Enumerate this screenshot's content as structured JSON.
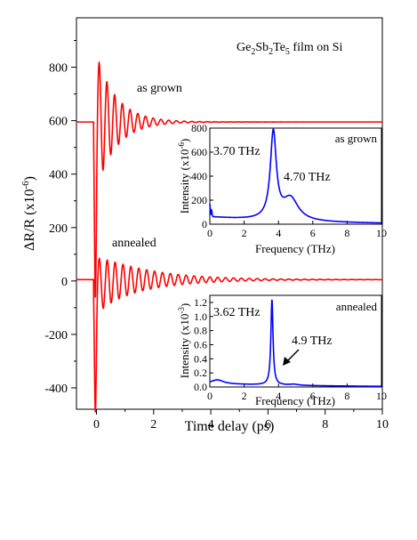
{
  "chart_data": [
    {
      "type": "line",
      "role": "main",
      "title": "",
      "annotation_parts": {
        "pre": "Ge",
        "sub1": "2",
        "mid": "Sb",
        "sub2": "2",
        "mid2": "Te",
        "sub3": "5",
        "post": " film on Si"
      },
      "xlabel": "Time delay (ps)",
      "ylabel_parts": {
        "base": "ΔR/R (x10",
        "sup": "-6",
        "close": ")"
      },
      "xlim": [
        -0.7,
        10
      ],
      "ylim": [
        -480,
        985
      ],
      "xticks": [
        0,
        2,
        4,
        6,
        8,
        10
      ],
      "yticks": [
        -400,
        -200,
        0,
        200,
        400,
        600,
        800
      ],
      "color": "#ff0000",
      "series": [
        {
          "label": "as grown",
          "baseline": 595,
          "onset_ps": -0.1,
          "dip": -430,
          "osc_amplitude": 290,
          "osc_frequency_thz": 3.7,
          "osc_decay_ps": 0.7,
          "osc_phase_deg": 99,
          "offset_amplitude": 5,
          "offset_decay_ps": 0.3
        },
        {
          "label": "annealed",
          "baseline": 5,
          "onset_ps": -0.1,
          "dip": -380,
          "osc_amplitude": 112,
          "osc_frequency_thz": 3.62,
          "osc_decay_ps": 1.7,
          "osc_phase_deg": 99,
          "offset_amplitude": -30,
          "offset_decay_ps": 0.5
        }
      ]
    },
    {
      "type": "line",
      "role": "inset",
      "panel_label": "as grown",
      "xlabel": "Frequency (THz)",
      "ylabel_parts": {
        "base": "Intensity (x10",
        "sup": "-6",
        "close": ")"
      },
      "xlim": [
        0,
        10
      ],
      "ylim": [
        0,
        800
      ],
      "xticks": [
        0,
        2,
        4,
        6,
        8,
        10
      ],
      "yticks": [
        0,
        200,
        400,
        600,
        800
      ],
      "color": "#0000ff",
      "peaks": [
        {
          "label": "3.70 THz",
          "center": 3.7,
          "height": 720,
          "width": 0.21
        },
        {
          "label": "4.70 THz",
          "center": 4.7,
          "height": 185,
          "width": 0.55
        }
      ],
      "background": {
        "amplitude": 60,
        "decay_thz": 5
      },
      "low_frequency_spike": {
        "height": 105,
        "width": 0.03
      }
    },
    {
      "type": "line",
      "role": "inset",
      "panel_label": "annealed",
      "xlabel": "Frequency (THz)",
      "ylabel_parts": {
        "base": "Intensity (x10",
        "sup": "-3",
        "close": ")"
      },
      "xlim": [
        0,
        10
      ],
      "ylim": [
        0,
        1.3
      ],
      "xticks": [
        0,
        2,
        4,
        6,
        8,
        10
      ],
      "yticks": [
        0.0,
        0.2,
        0.4,
        0.6,
        0.8,
        1.0,
        1.2
      ],
      "color": "#0000ff",
      "peaks": [
        {
          "label": "3.62 THz",
          "center": 3.62,
          "height": 1.21,
          "width": 0.075
        },
        {
          "label": "4.9 THz",
          "center": 4.9,
          "height": 0.015,
          "width": 0.3
        },
        {
          "label": "",
          "center": 0.45,
          "height": 0.055,
          "width": 0.4
        }
      ],
      "background": {
        "amplitude": 0.05,
        "decay_thz": 6
      },
      "arrow_annotation": "4.9 THz"
    }
  ]
}
